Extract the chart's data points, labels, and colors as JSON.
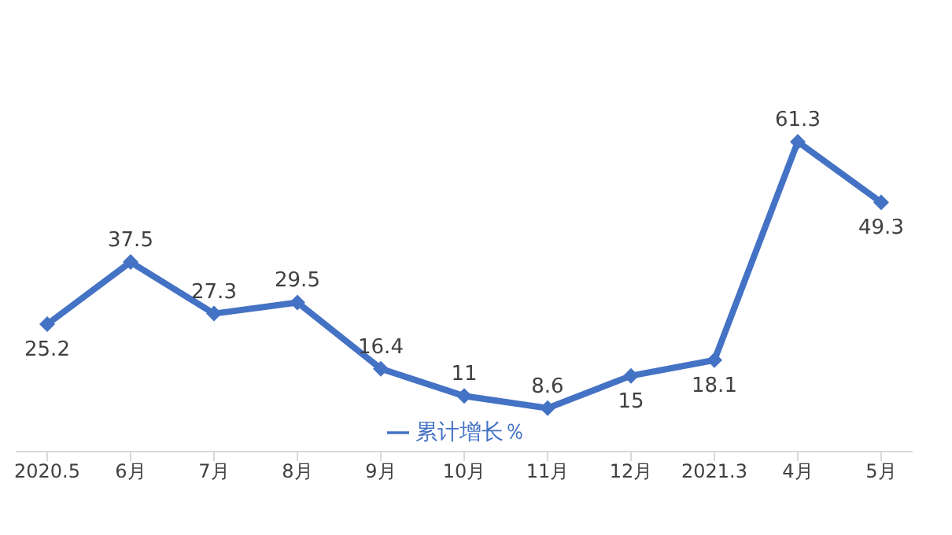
{
  "chart_data": {
    "type": "line",
    "categories": [
      "2020.5",
      "6月",
      "7月",
      "8月",
      "9月",
      "10月",
      "11月",
      "12月",
      "2021.3",
      "4月",
      "5月"
    ],
    "series": [
      {
        "name": "累计增长％",
        "color": "#4472c4",
        "values": [
          25.2,
          37.5,
          27.3,
          29.5,
          16.4,
          11,
          8.6,
          15,
          18.1,
          61.3,
          49.3
        ]
      }
    ],
    "data_labels": true,
    "legend": "bottom",
    "marker": "diamond",
    "line_style": "solid",
    "grid": false,
    "tick_labels": "x"
  }
}
